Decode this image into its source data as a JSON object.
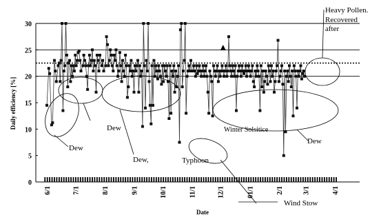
{
  "chart_data": {
    "type": "scatter",
    "title": "",
    "xlabel": "Date",
    "ylabel": "Daily efficiency [%]",
    "ylim": [
      0,
      30
    ],
    "yticks": [
      "0",
      "5",
      "10",
      "15",
      "20",
      "25",
      "30"
    ],
    "xlim": [
      0,
      304
    ],
    "xticks": [
      {
        "label": "6/1",
        "day": 0
      },
      {
        "label": "7/1",
        "day": 30
      },
      {
        "label": "8/1",
        "day": 61
      },
      {
        "label": "9/1",
        "day": 92
      },
      {
        "label": "10/1",
        "day": 122
      },
      {
        "label": "11/1",
        "day": 153
      },
      {
        "label": "12/1",
        "day": 183
      },
      {
        "label": "01/1",
        "day": 214
      },
      {
        "label": "2/1",
        "day": 245
      },
      {
        "label": "3/1",
        "day": 273
      },
      {
        "label": "4/1",
        "day": 304
      }
    ],
    "reference_lines": [
      20,
      22.5,
      25,
      30
    ],
    "marker_point": {
      "day": 186,
      "value": 25.3
    },
    "series": [
      {
        "values": [
          [
            0,
            14.5
          ],
          [
            2,
            21.5
          ],
          [
            3,
            20.5
          ],
          [
            5,
            10.8
          ],
          [
            6,
            11.2
          ],
          [
            8,
            23
          ],
          [
            9,
            21
          ],
          [
            10,
            19
          ],
          [
            12,
            22
          ],
          [
            13,
            22.5
          ],
          [
            14,
            19
          ],
          [
            15,
            23
          ],
          [
            16,
            30
          ],
          [
            17,
            13.5
          ],
          [
            18,
            21
          ],
          [
            19,
            22
          ],
          [
            20,
            30
          ],
          [
            21,
            24
          ],
          [
            22,
            18
          ],
          [
            23,
            22.5
          ],
          [
            24,
            23
          ],
          [
            25,
            19
          ],
          [
            26,
            22
          ],
          [
            27,
            20
          ],
          [
            28,
            22
          ],
          [
            29,
            21
          ],
          [
            30,
            24
          ],
          [
            31,
            22
          ],
          [
            32,
            23
          ],
          [
            33,
            24.5
          ],
          [
            34,
            24.8
          ],
          [
            35,
            23
          ],
          [
            36,
            21
          ],
          [
            38,
            22
          ],
          [
            39,
            24
          ],
          [
            40,
            23
          ],
          [
            41,
            22
          ],
          [
            42,
            20
          ],
          [
            43,
            17.5
          ],
          [
            44,
            22
          ],
          [
            45,
            24
          ],
          [
            46,
            22
          ],
          [
            47,
            23
          ],
          [
            48,
            25
          ],
          [
            49,
            21
          ],
          [
            50,
            23
          ],
          [
            51,
            22
          ],
          [
            52,
            17
          ],
          [
            53,
            24
          ],
          [
            54,
            23
          ],
          [
            55,
            21
          ],
          [
            56,
            24
          ],
          [
            58,
            22
          ],
          [
            59,
            23
          ],
          [
            60,
            21
          ],
          [
            62,
            22
          ],
          [
            63,
            27.5
          ],
          [
            64,
            26
          ],
          [
            65,
            22
          ],
          [
            66,
            23
          ],
          [
            67,
            25
          ],
          [
            68,
            24
          ],
          [
            69,
            22
          ],
          [
            70,
            21
          ],
          [
            71,
            24
          ],
          [
            72,
            23
          ],
          [
            73,
            25
          ],
          [
            74,
            22
          ],
          [
            75,
            20
          ],
          [
            76,
            21
          ],
          [
            77,
            24.5
          ],
          [
            78,
            22
          ],
          [
            79,
            19
          ],
          [
            80,
            23
          ],
          [
            81,
            21
          ],
          [
            82,
            20
          ],
          [
            83,
            24
          ],
          [
            84,
            22
          ],
          [
            85,
            16
          ],
          [
            86,
            18
          ],
          [
            87,
            22
          ],
          [
            88,
            21
          ],
          [
            89,
            23
          ],
          [
            90,
            20
          ],
          [
            91,
            21
          ],
          [
            92,
            17
          ],
          [
            93,
            22
          ],
          [
            94,
            21
          ],
          [
            95,
            22
          ],
          [
            96,
            23
          ],
          [
            97,
            17
          ],
          [
            98,
            22
          ],
          [
            99,
            20
          ],
          [
            100,
            21
          ],
          [
            101,
            10.5
          ],
          [
            102,
            30
          ],
          [
            103,
            22
          ],
          [
            104,
            14
          ],
          [
            105,
            23
          ],
          [
            106,
            21
          ],
          [
            107,
            30
          ],
          [
            108,
            19
          ],
          [
            109,
            14.5
          ],
          [
            110,
            11
          ],
          [
            111,
            22
          ],
          [
            112,
            14.5
          ],
          [
            113,
            23
          ],
          [
            114,
            20
          ],
          [
            115,
            22
          ],
          [
            116,
            21
          ],
          [
            117,
            19.5
          ],
          [
            118,
            22
          ],
          [
            119,
            21
          ],
          [
            120,
            20
          ],
          [
            121,
            18.5
          ],
          [
            122,
            22
          ],
          [
            123,
            19
          ],
          [
            124,
            22
          ],
          [
            125,
            21
          ],
          [
            126,
            20
          ],
          [
            127,
            22
          ],
          [
            128,
            19
          ],
          [
            129,
            12
          ],
          [
            130,
            22
          ],
          [
            131,
            13
          ],
          [
            132,
            21
          ],
          [
            133,
            20
          ],
          [
            134,
            22
          ],
          [
            135,
            17
          ],
          [
            136,
            21
          ],
          [
            137,
            18
          ],
          [
            138,
            20
          ],
          [
            139,
            22
          ],
          [
            140,
            7.5
          ],
          [
            141,
            28.8
          ],
          [
            142,
            30
          ],
          [
            143,
            18
          ],
          [
            144,
            21
          ],
          [
            145,
            23
          ],
          [
            146,
            30
          ],
          [
            147,
            13
          ],
          [
            148,
            20
          ],
          [
            149,
            21
          ],
          [
            150,
            22
          ],
          [
            151,
            21
          ],
          [
            152,
            23
          ],
          [
            153,
            21
          ],
          [
            154,
            21
          ],
          [
            155,
            22
          ],
          [
            156,
            21
          ],
          [
            157,
            20
          ],
          [
            158,
            22
          ],
          [
            159,
            20.5
          ],
          [
            160,
            21
          ],
          [
            161,
            22
          ],
          [
            162,
            21
          ],
          [
            163,
            20
          ],
          [
            164,
            21
          ],
          [
            165,
            22
          ],
          [
            166,
            20
          ],
          [
            167,
            21
          ],
          [
            168,
            22
          ],
          [
            169,
            20
          ],
          [
            170,
            17
          ],
          [
            171,
            13
          ],
          [
            172,
            21
          ],
          [
            173,
            20
          ],
          [
            174,
            19
          ],
          [
            175,
            12.5
          ],
          [
            176,
            22
          ],
          [
            177,
            21
          ],
          [
            178,
            20
          ],
          [
            179,
            21
          ],
          [
            180,
            22
          ],
          [
            181,
            19
          ],
          [
            182,
            21
          ],
          [
            183,
            20
          ],
          [
            184,
            21
          ],
          [
            185,
            22
          ],
          [
            186,
            21
          ],
          [
            187,
            20
          ],
          [
            188,
            21
          ],
          [
            189,
            22
          ],
          [
            190,
            20
          ],
          [
            191,
            21
          ],
          [
            192,
            27.5
          ],
          [
            193,
            22
          ],
          [
            194,
            21
          ],
          [
            195,
            20
          ],
          [
            196,
            22
          ],
          [
            197,
            21
          ],
          [
            198,
            20
          ],
          [
            199,
            22
          ],
          [
            200,
            13.5
          ],
          [
            201,
            20
          ],
          [
            202,
            21
          ],
          [
            203,
            22
          ],
          [
            204,
            21
          ],
          [
            205,
            20
          ],
          [
            206,
            22
          ],
          [
            207,
            21
          ],
          [
            208,
            20.5
          ],
          [
            209,
            21
          ],
          [
            210,
            22
          ],
          [
            211,
            20
          ],
          [
            212,
            21
          ],
          [
            213,
            22
          ],
          [
            214,
            21
          ],
          [
            215,
            20
          ],
          [
            216,
            21
          ],
          [
            217,
            22
          ],
          [
            218,
            19
          ],
          [
            219,
            18
          ],
          [
            220,
            21
          ],
          [
            221,
            20
          ],
          [
            222,
            22
          ],
          [
            223,
            21
          ],
          [
            224,
            20
          ],
          [
            225,
            13.5
          ],
          [
            226,
            22
          ],
          [
            227,
            18
          ],
          [
            228,
            21
          ],
          [
            229,
            17
          ],
          [
            230,
            19
          ],
          [
            231,
            21
          ],
          [
            232,
            20
          ],
          [
            233,
            18.5
          ],
          [
            234,
            22
          ],
          [
            235,
            21
          ],
          [
            236,
            19
          ],
          [
            237,
            22
          ],
          [
            238,
            20
          ],
          [
            239,
            21
          ],
          [
            240,
            17
          ],
          [
            241,
            19
          ],
          [
            242,
            21
          ],
          [
            243,
            22
          ],
          [
            244,
            26.8
          ],
          [
            245,
            19
          ],
          [
            246,
            20
          ],
          [
            247,
            21
          ],
          [
            248,
            22
          ],
          [
            249,
            18.5
          ],
          [
            250,
            5
          ],
          [
            251,
            21
          ],
          [
            252,
            9.5
          ],
          [
            253,
            20
          ],
          [
            254,
            21
          ],
          [
            255,
            19
          ],
          [
            256,
            22
          ],
          [
            257,
            20
          ],
          [
            258,
            18
          ],
          [
            259,
            21
          ],
          [
            260,
            12.5
          ],
          [
            261,
            22
          ],
          [
            262,
            21
          ],
          [
            263,
            20
          ],
          [
            264,
            14
          ],
          [
            265,
            21
          ],
          [
            266,
            20
          ],
          [
            267,
            21
          ],
          [
            268,
            22
          ],
          [
            269,
            19.5
          ],
          [
            270,
            20.5
          ],
          [
            271,
            21
          ],
          [
            272,
            20
          ]
        ]
      }
    ],
    "annotations": [
      "Heavy Pollen.",
      "Recovered",
      "after",
      "Dew",
      "Dew",
      "Dew,",
      "Typhoon",
      "Winter Solsitice",
      "Dew",
      "Wind Stow"
    ]
  }
}
